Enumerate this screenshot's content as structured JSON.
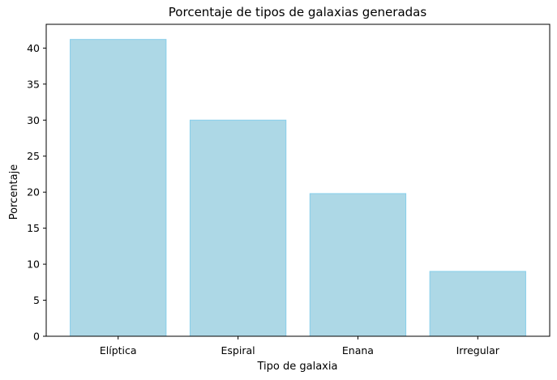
{
  "chart_data": {
    "type": "bar",
    "title": "Porcentaje de tipos de galaxias generadas",
    "xlabel": "Tipo de galaxia",
    "ylabel": "Porcentaje",
    "categories": [
      "Elíptica",
      "Espiral",
      "Enana",
      "Irregular"
    ],
    "values": [
      41.2,
      30.0,
      19.8,
      9.0
    ],
    "ylim": [
      0,
      43.3
    ],
    "yticks": [
      0,
      5,
      10,
      15,
      20,
      25,
      30,
      35,
      40
    ],
    "grid": false,
    "legend": "none",
    "colors": {
      "bar_fill": "#add8e6",
      "bar_edge": "#87ceeb",
      "axis": "#000000"
    }
  }
}
